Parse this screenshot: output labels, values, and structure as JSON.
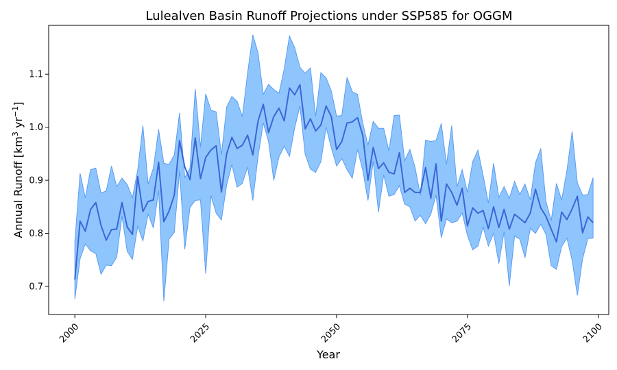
{
  "chart_data": {
    "type": "line",
    "title": "Lulealven Basin Runoff Projections under SSP585 for OGGM",
    "xlabel": "Year",
    "ylabel_text": "Annual Runoff [km",
    "ylabel_sup1": "3",
    "ylabel_mid": " yr",
    "ylabel_sup2": "−1",
    "ylabel_end": "]",
    "xlim": [
      1995,
      2102
    ],
    "ylim": [
      0.647,
      1.192
    ],
    "x_ticks": [
      2000,
      2025,
      2050,
      2075,
      2100
    ],
    "y_ticks": [
      0.7,
      0.8,
      0.9,
      1.0,
      1.1
    ],
    "x_tick_labels": [
      "2000",
      "2025",
      "2050",
      "2075",
      "2100"
    ],
    "y_tick_labels": [
      "0.7",
      "0.8",
      "0.9",
      "1.0",
      "1.1"
    ],
    "x_start": 2000,
    "mean": [
      0.713,
      0.823,
      0.804,
      0.845,
      0.858,
      0.815,
      0.787,
      0.807,
      0.808,
      0.858,
      0.812,
      0.798,
      0.907,
      0.841,
      0.86,
      0.863,
      0.934,
      0.822,
      0.842,
      0.872,
      0.975,
      0.925,
      0.901,
      0.98,
      0.903,
      0.943,
      0.957,
      0.965,
      0.878,
      0.95,
      0.981,
      0.96,
      0.966,
      0.985,
      0.948,
      1.012,
      1.043,
      0.99,
      1.02,
      1.036,
      1.012,
      1.074,
      1.061,
      1.08,
      0.997,
      1.016,
      0.993,
      1.004,
      1.04,
      1.02,
      0.958,
      0.973,
      1.008,
      1.01,
      1.018,
      0.985,
      0.9,
      0.962,
      0.922,
      0.933,
      0.915,
      0.912,
      0.952,
      0.877,
      0.885,
      0.877,
      0.877,
      0.924,
      0.866,
      0.931,
      0.823,
      0.893,
      0.877,
      0.853,
      0.885,
      0.814,
      0.848,
      0.838,
      0.843,
      0.809,
      0.85,
      0.811,
      0.845,
      0.808,
      0.836,
      0.828,
      0.82,
      0.838,
      0.883,
      0.848,
      0.832,
      0.808,
      0.784,
      0.84,
      0.826,
      0.846,
      0.87,
      0.801,
      0.831,
      0.82
    ],
    "upper": [
      0.785,
      0.913,
      0.867,
      0.92,
      0.923,
      0.876,
      0.88,
      0.927,
      0.888,
      0.904,
      0.892,
      0.867,
      0.919,
      1.003,
      0.893,
      0.923,
      0.996,
      0.932,
      0.93,
      0.948,
      1.027,
      0.905,
      0.923,
      1.072,
      0.962,
      1.063,
      1.032,
      1.029,
      0.948,
      1.038,
      1.058,
      1.049,
      1.02,
      1.102,
      1.174,
      1.14,
      1.062,
      1.081,
      1.071,
      1.064,
      1.11,
      1.172,
      1.15,
      1.113,
      1.102,
      1.112,
      1.02,
      1.103,
      1.093,
      1.068,
      1.021,
      1.022,
      1.094,
      1.067,
      1.062,
      1.008,
      0.966,
      1.011,
      0.998,
      0.998,
      0.955,
      1.022,
      1.023,
      0.937,
      0.958,
      0.924,
      0.872,
      0.976,
      0.973,
      0.975,
      1.007,
      0.93,
      1.003,
      0.888,
      0.92,
      0.877,
      0.935,
      0.957,
      0.909,
      0.857,
      0.932,
      0.868,
      0.888,
      0.866,
      0.898,
      0.873,
      0.893,
      0.863,
      0.933,
      0.96,
      0.86,
      0.824,
      0.894,
      0.863,
      0.918,
      0.992,
      0.895,
      0.872,
      0.873,
      0.905
    ],
    "lower": [
      0.676,
      0.752,
      0.78,
      0.767,
      0.762,
      0.723,
      0.74,
      0.739,
      0.755,
      0.833,
      0.766,
      0.751,
      0.813,
      0.786,
      0.836,
      0.81,
      0.881,
      0.672,
      0.789,
      0.802,
      0.917,
      0.77,
      0.849,
      0.862,
      0.863,
      0.724,
      0.871,
      0.838,
      0.825,
      0.891,
      0.93,
      0.887,
      0.894,
      0.925,
      0.862,
      0.945,
      1.008,
      0.973,
      0.9,
      0.944,
      0.964,
      0.945,
      0.999,
      1.04,
      0.949,
      0.921,
      0.915,
      0.935,
      1.0,
      0.961,
      0.927,
      0.941,
      0.92,
      0.904,
      0.958,
      0.919,
      0.862,
      0.936,
      0.84,
      0.91,
      0.87,
      0.873,
      0.89,
      0.855,
      0.85,
      0.823,
      0.834,
      0.818,
      0.836,
      0.872,
      0.792,
      0.827,
      0.82,
      0.823,
      0.838,
      0.796,
      0.769,
      0.776,
      0.812,
      0.776,
      0.8,
      0.743,
      0.803,
      0.701,
      0.795,
      0.789,
      0.754,
      0.809,
      0.8,
      0.817,
      0.798,
      0.739,
      0.732,
      0.775,
      0.791,
      0.749,
      0.683,
      0.752,
      0.79,
      0.791
    ],
    "colors": {
      "band_fill": "#8ec5fc",
      "band_edge": "#5b9cf0",
      "mean_line": "#3a66d6"
    }
  }
}
